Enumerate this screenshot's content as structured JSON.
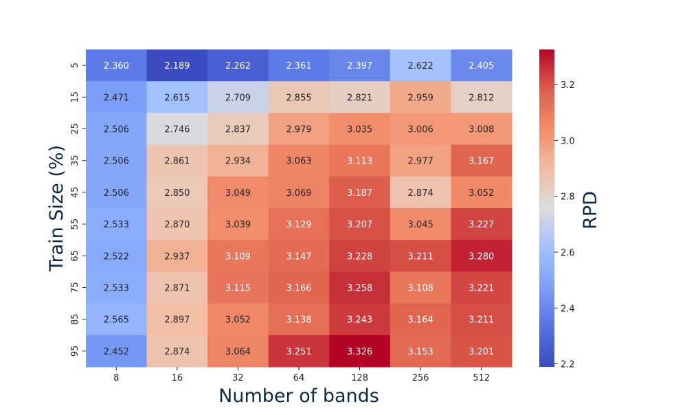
{
  "chart_data": {
    "type": "heatmap",
    "title": "",
    "xlabel": "Number of bands",
    "ylabel": "Train Size (%)",
    "x_categories": [
      "8",
      "16",
      "32",
      "64",
      "128",
      "256",
      "512"
    ],
    "y_categories": [
      "5",
      "15",
      "25",
      "35",
      "45",
      "55",
      "65",
      "75",
      "85",
      "95"
    ],
    "values": [
      [
        2.36,
        2.189,
        2.262,
        2.361,
        2.397,
        2.622,
        2.405
      ],
      [
        2.471,
        2.615,
        2.709,
        2.855,
        2.821,
        2.959,
        2.812
      ],
      [
        2.506,
        2.746,
        2.837,
        2.979,
        3.035,
        3.006,
        3.008
      ],
      [
        2.506,
        2.861,
        2.934,
        3.063,
        3.113,
        2.977,
        3.167
      ],
      [
        2.506,
        2.85,
        3.049,
        3.069,
        3.187,
        2.874,
        3.052
      ],
      [
        2.533,
        2.87,
        3.039,
        3.129,
        3.207,
        3.045,
        3.227
      ],
      [
        2.522,
        2.937,
        3.109,
        3.147,
        3.228,
        3.211,
        3.28
      ],
      [
        2.533,
        2.871,
        3.115,
        3.166,
        3.258,
        3.108,
        3.221
      ],
      [
        2.565,
        2.897,
        3.052,
        3.138,
        3.243,
        3.164,
        3.211
      ],
      [
        2.452,
        2.874,
        3.064,
        3.251,
        3.326,
        3.153,
        3.201
      ]
    ],
    "value_labels": [
      [
        "2.360",
        "2.189",
        "2.262",
        "2.361",
        "2.397",
        "2.622",
        "2.405"
      ],
      [
        "2.471",
        "2.615",
        "2.709",
        "2.855",
        "2.821",
        "2.959",
        "2.812"
      ],
      [
        "2.506",
        "2.746",
        "2.837",
        "2.979",
        "3.035",
        "3.006",
        "3.008"
      ],
      [
        "2.506",
        "2.861",
        "2.934",
        "3.063",
        "3.113",
        "2.977",
        "3.167"
      ],
      [
        "2.506",
        "2.850",
        "3.049",
        "3.069",
        "3.187",
        "2.874",
        "3.052"
      ],
      [
        "2.533",
        "2.870",
        "3.039",
        "3.129",
        "3.207",
        "3.045",
        "3.227"
      ],
      [
        "2.522",
        "2.937",
        "3.109",
        "3.147",
        "3.228",
        "3.211",
        "3.280"
      ],
      [
        "2.533",
        "2.871",
        "3.115",
        "3.166",
        "3.258",
        "3.108",
        "3.221"
      ],
      [
        "2.565",
        "2.897",
        "3.052",
        "3.138",
        "3.243",
        "3.164",
        "3.211"
      ],
      [
        "2.452",
        "2.874",
        "3.064",
        "3.251",
        "3.326",
        "3.153",
        "3.201"
      ]
    ],
    "colormap": "coolwarm",
    "vmin": 2.189,
    "vmax": 3.326,
    "colorbar": {
      "label": "RPD",
      "ticks": [
        2.2,
        2.4,
        2.6,
        2.8,
        3.0,
        3.2
      ],
      "tick_labels": [
        "2.2",
        "2.4",
        "2.6",
        "2.8",
        "3.0",
        "3.2"
      ]
    },
    "grid": false,
    "legend": "none"
  }
}
